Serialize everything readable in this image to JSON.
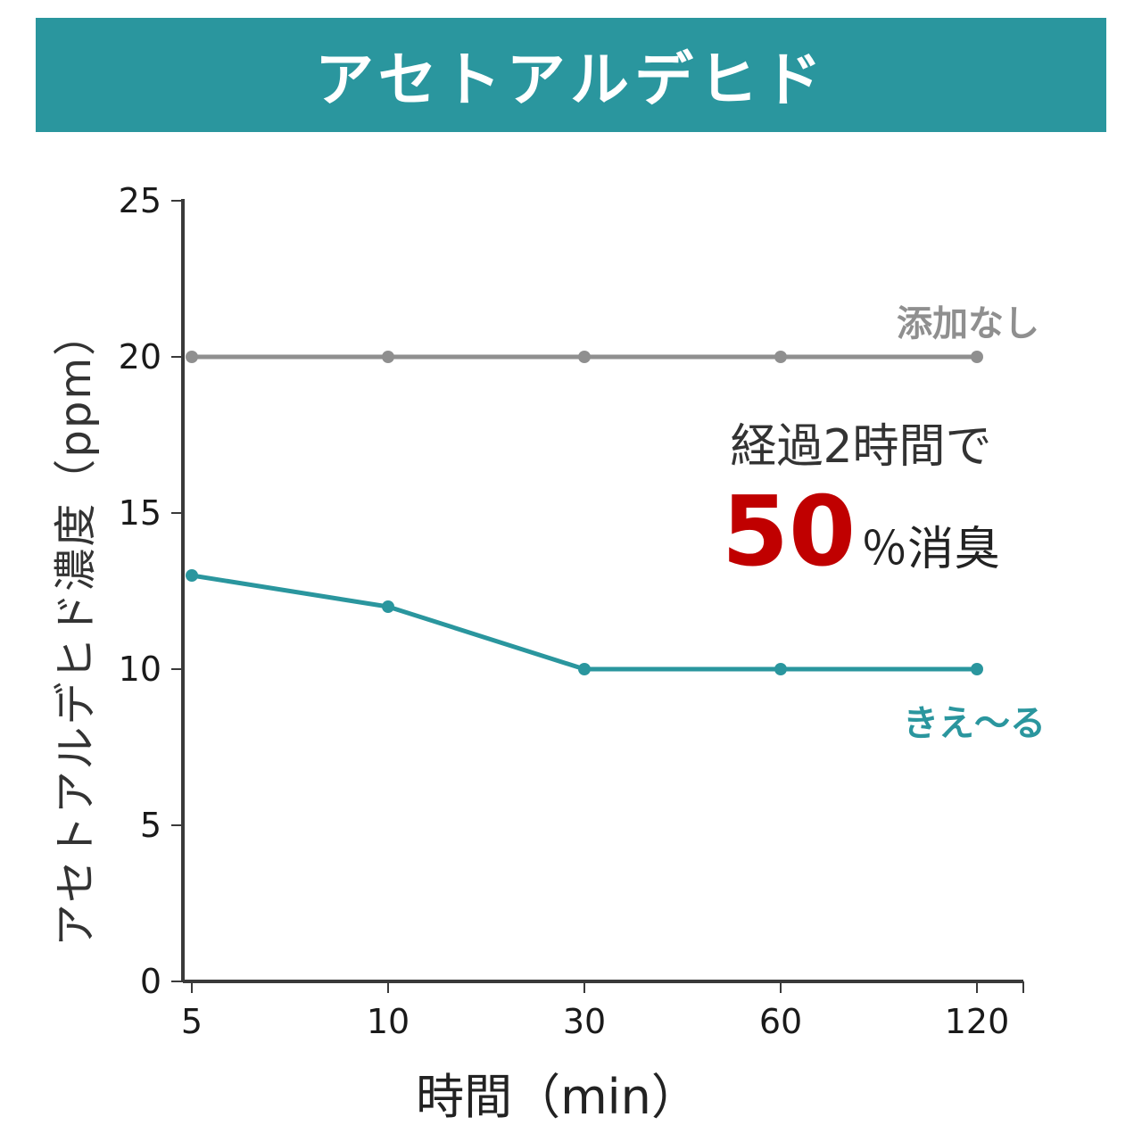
{
  "header": {
    "title": "アセトアルデヒド",
    "bg_color": "#2a969e",
    "text_color": "#ffffff"
  },
  "chart_data": {
    "type": "line",
    "categories": [
      5,
      10,
      30,
      60,
      120
    ],
    "x_tick_labels": [
      "5",
      "10",
      "30",
      "60",
      "120"
    ],
    "y_ticks": [
      0,
      5,
      10,
      15,
      20,
      25
    ],
    "ylim": [
      0,
      25
    ],
    "xlabel": "時間（min）",
    "ylabel": "アセトアルデヒド濃度（ppm）",
    "grid": false,
    "legend_position": "inline-labels-right",
    "axis_color": "#3a3a3a",
    "series": [
      {
        "name": "添加なし",
        "values": [
          20,
          20,
          20,
          20,
          20
        ],
        "color": "#8f8f8f"
      },
      {
        "name": "きえ～る",
        "values": [
          13,
          12,
          10,
          10,
          10
        ],
        "color": "#2a969e"
      }
    ]
  },
  "annotation": {
    "line1": "経過2時間で",
    "big_number": "50",
    "suffix": "％消臭",
    "number_color": "#c00000"
  }
}
